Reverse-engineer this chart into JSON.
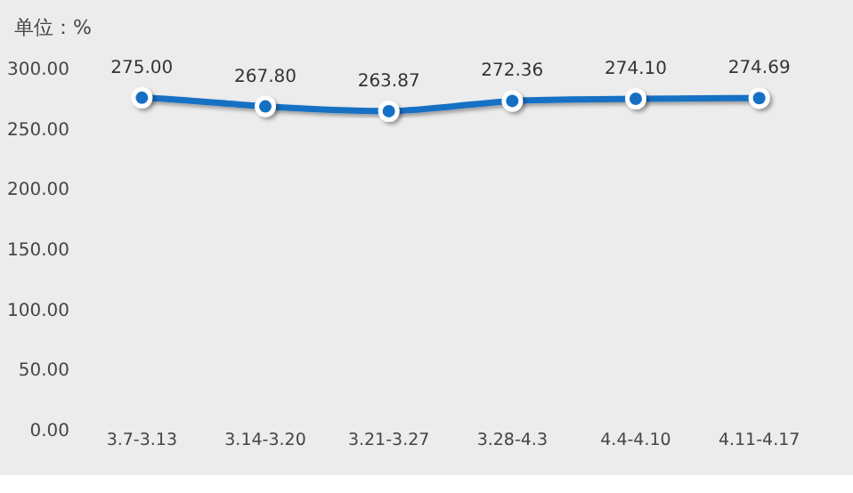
{
  "chart_data": {
    "type": "line",
    "ylabel": "单位：%",
    "categories": [
      "3.7-3.13",
      "3.14-3.20",
      "3.21-3.27",
      "3.28-4.3",
      "4.4-4.10",
      "4.11-4.17"
    ],
    "series": [
      {
        "color": "#1570c4",
        "values": [
          275.0,
          267.8,
          263.87,
          272.36,
          274.1,
          274.69
        ],
        "value_labels": [
          "275.00",
          "267.80",
          "263.87",
          "272.36",
          "274.10",
          "274.69"
        ]
      }
    ],
    "ylim": [
      0,
      300
    ],
    "yticks": [
      {
        "value": 0,
        "label": "0.00"
      },
      {
        "value": 50,
        "label": "50.00"
      },
      {
        "value": 100,
        "label": "100.00"
      },
      {
        "value": 150,
        "label": "150.00"
      },
      {
        "value": 200,
        "label": "200.00"
      },
      {
        "value": 250,
        "label": "250.00"
      },
      {
        "value": 300,
        "label": "300.00"
      }
    ],
    "marker": "circle",
    "grid": false
  }
}
